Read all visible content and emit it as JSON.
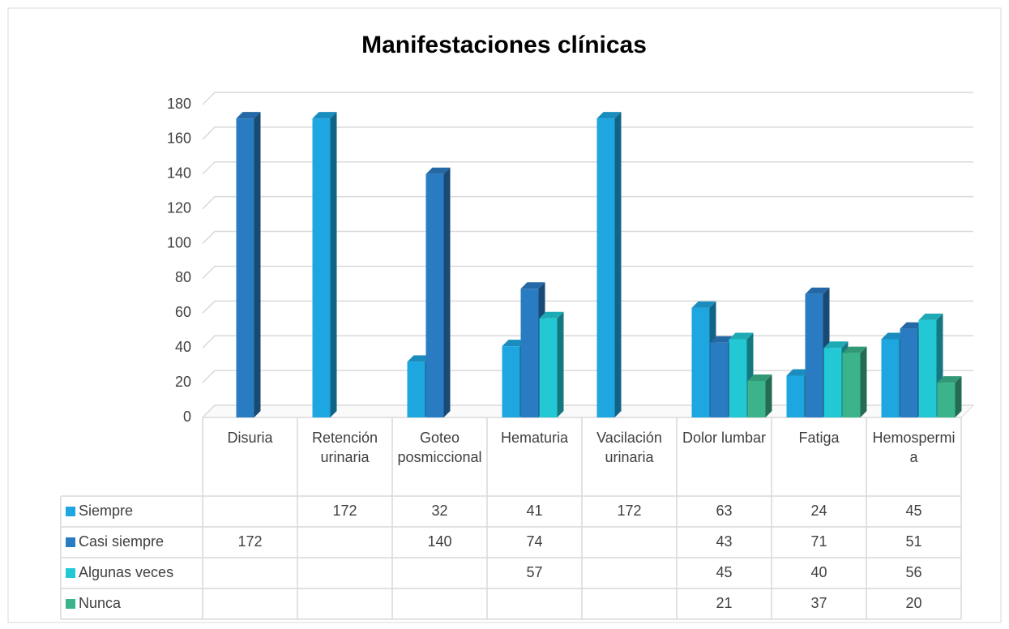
{
  "chart_data": {
    "type": "bar3d",
    "title": "Manifestaciones clínicas",
    "categories": [
      "Disuria",
      "Retención urinaria",
      "Goteo posmiccional",
      "Hematuria",
      "Vacilación urinaria",
      "Dolor lumbar",
      "Fatiga",
      "Hemospermia"
    ],
    "series": [
      {
        "name": "Siempre",
        "color": "#1ea6e0",
        "values": [
          null,
          172,
          32,
          41,
          172,
          63,
          24,
          45
        ]
      },
      {
        "name": "Casi siempre",
        "color": "#2a7cc2",
        "values": [
          172,
          null,
          140,
          74,
          null,
          43,
          71,
          51
        ]
      },
      {
        "name": "Algunas veces",
        "color": "#23c8d5",
        "values": [
          null,
          null,
          null,
          57,
          null,
          45,
          40,
          56
        ]
      },
      {
        "name": "Nunca",
        "color": "#3bb48b",
        "values": [
          null,
          null,
          null,
          null,
          null,
          21,
          37,
          20
        ]
      }
    ],
    "ylim": [
      0,
      180
    ],
    "yticks": [
      0,
      20,
      40,
      60,
      80,
      100,
      120,
      140,
      160,
      180
    ],
    "grid": true,
    "data_table": true
  }
}
